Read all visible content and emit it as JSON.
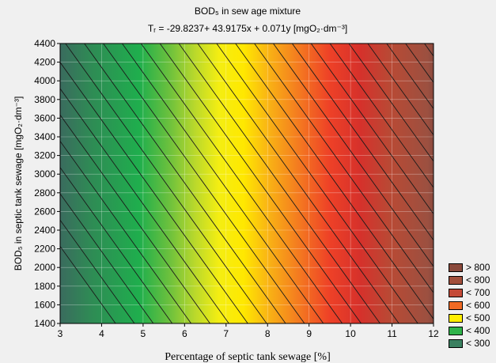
{
  "chart_data": {
    "type": "heatmap",
    "title": "BOD₅ in sew age mixture",
    "subtitle": "Tᵣ = -29.8237+ 43.9175x + 0.071y [mgO₂·dm⁻³]",
    "xlabel": "Percentage of septic tank sewage [%]",
    "ylabel": "BOD₅ in septic tank sewage [mgO₂·dm⁻³]",
    "xlim": [
      3,
      12
    ],
    "ylim": [
      1400,
      4400
    ],
    "x_ticks": [
      "3",
      "4",
      "5",
      "6",
      "7",
      "8",
      "9",
      "10",
      "11",
      "12"
    ],
    "y_ticks": [
      "1400",
      "1600",
      "1800",
      "2000",
      "2200",
      "2400",
      "2600",
      "2800",
      "3000",
      "3200",
      "3400",
      "3600",
      "3800",
      "4000",
      "4200",
      "4400"
    ],
    "x_tick_values": [
      3,
      4,
      5,
      6,
      7,
      8,
      9,
      10,
      11,
      12
    ],
    "y_tick_values": [
      1400,
      1600,
      1800,
      2000,
      2200,
      2400,
      2600,
      2800,
      3000,
      3200,
      3400,
      3600,
      3800,
      4000,
      4200,
      4400
    ],
    "model": {
      "intercept": -29.8237,
      "coef_x": 43.9175,
      "coef_y": 0.071
    },
    "contour_levels": [
      260,
      280,
      300,
      320,
      340,
      360,
      380,
      400,
      420,
      440,
      460,
      480,
      500,
      520,
      540,
      560,
      580,
      600,
      620,
      640,
      660,
      680,
      700,
      720,
      740,
      760,
      780,
      800,
      820
    ],
    "legend": [
      {
        "label": "> 800",
        "color": "#8b4a3c"
      },
      {
        "label": "< 800",
        "color": "#a24f3b"
      },
      {
        "label": "< 700",
        "color": "#c44a37"
      },
      {
        "label": "< 600",
        "color": "#f06a24"
      },
      {
        "label": "< 500",
        "color": "#ffee00"
      },
      {
        "label": "< 400",
        "color": "#2fb34a"
      },
      {
        "label": "< 300",
        "color": "#3a8060"
      }
    ],
    "grid": true,
    "legend_position": "bottom-right"
  }
}
